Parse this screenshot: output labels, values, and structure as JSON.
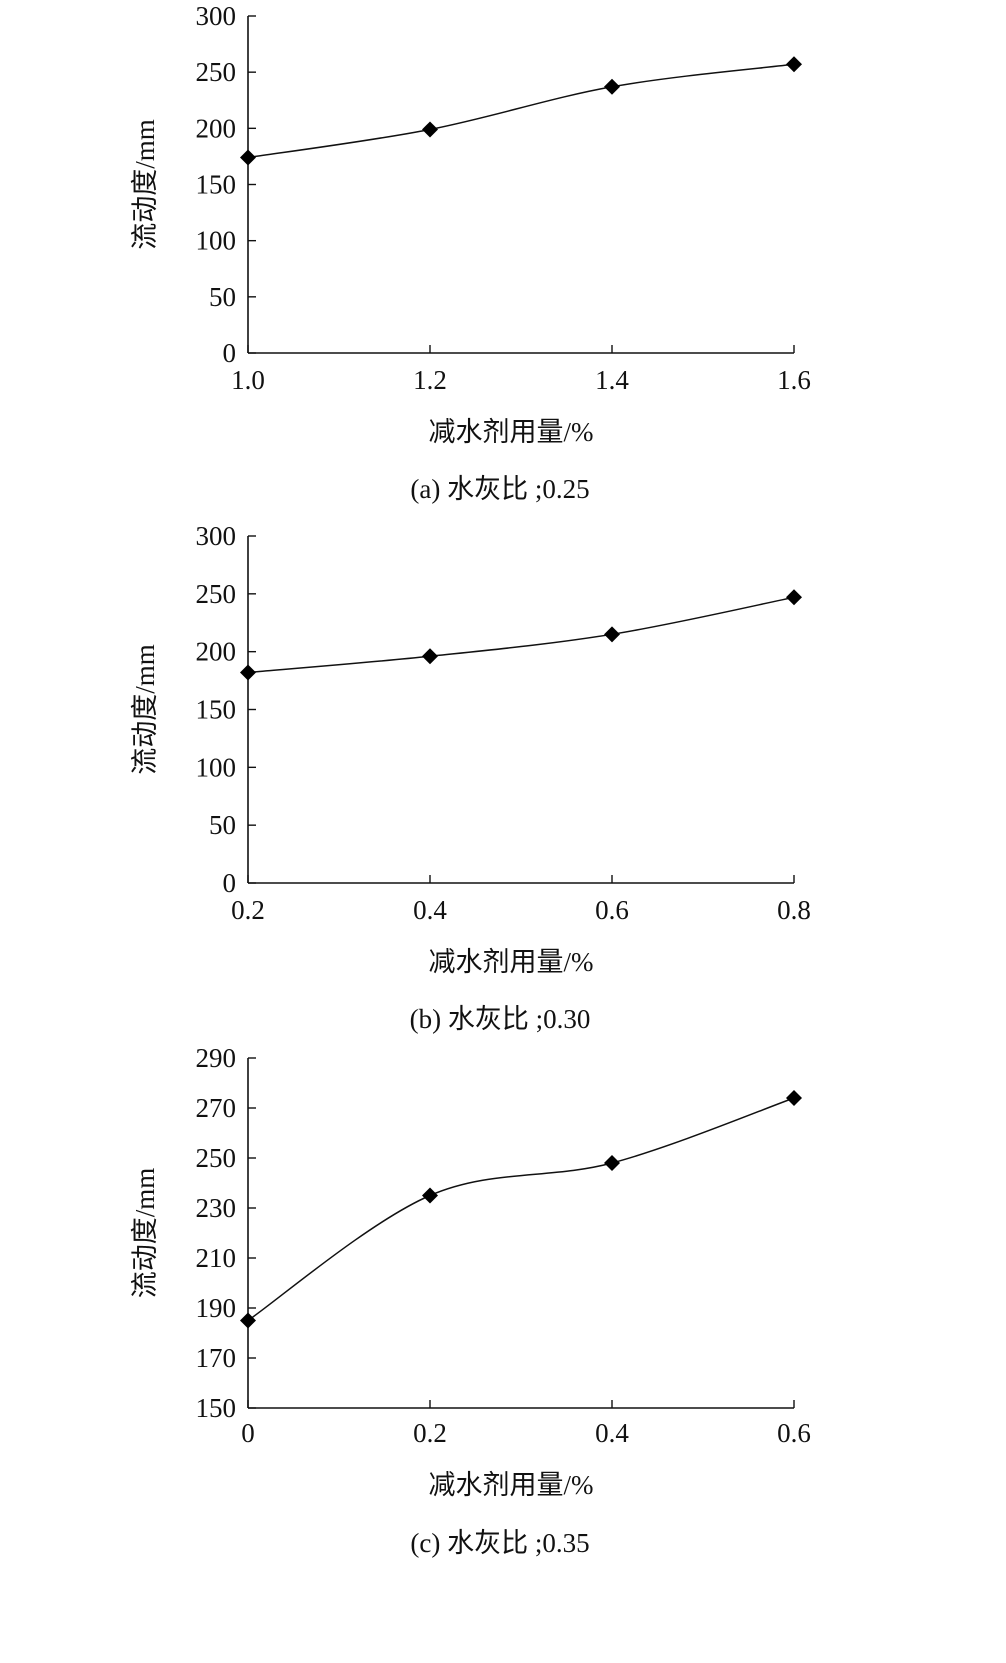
{
  "chart_data": [
    {
      "type": "line",
      "caption": "(a) 水灰比 ;0.25",
      "xlabel": "减水剂用量/%",
      "ylabel": "流动度/mm",
      "x_ticks": [
        "1.0",
        "1.2",
        "1.4",
        "1.6"
      ],
      "y_ticks": [
        "0",
        "50",
        "100",
        "150",
        "200",
        "250",
        "300"
      ],
      "xlim": [
        1.0,
        1.6
      ],
      "ylim": [
        0,
        300
      ],
      "x": [
        1.0,
        1.2,
        1.4,
        1.6
      ],
      "values": [
        174,
        199,
        237,
        257
      ],
      "marker": "diamond"
    },
    {
      "type": "line",
      "caption": "(b) 水灰比 ;0.30",
      "xlabel": "减水剂用量/%",
      "ylabel": "流动度/mm",
      "x_ticks": [
        "0.2",
        "0.4",
        "0.6",
        "0.8"
      ],
      "y_ticks": [
        "0",
        "50",
        "100",
        "150",
        "200",
        "250",
        "300"
      ],
      "xlim": [
        0.2,
        0.8
      ],
      "ylim": [
        0,
        300
      ],
      "x": [
        0.2,
        0.4,
        0.6,
        0.8
      ],
      "values": [
        182,
        196,
        215,
        247
      ],
      "marker": "diamond"
    },
    {
      "type": "line",
      "caption": "(c) 水灰比 ;0.35",
      "xlabel": "减水剂用量/%",
      "ylabel": "流动度/mm",
      "x_ticks": [
        "0",
        "0.2",
        "0.4",
        "0.6"
      ],
      "y_ticks": [
        "150",
        "170",
        "190",
        "210",
        "230",
        "250",
        "270",
        "290"
      ],
      "xlim": [
        0,
        0.6
      ],
      "ylim": [
        150,
        290
      ],
      "x": [
        0,
        0.2,
        0.4,
        0.6
      ],
      "values": [
        185,
        235,
        248,
        274
      ],
      "marker": "diamond"
    }
  ]
}
